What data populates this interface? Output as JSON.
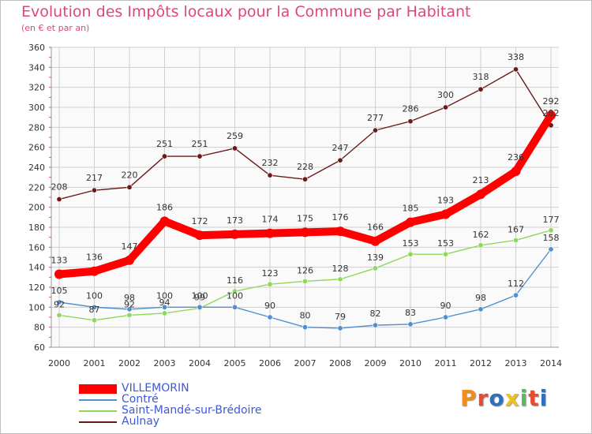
{
  "title": "Evolution des Impôts locaux pour la Commune par Habitant",
  "subtitle": "(en € et par an)",
  "logo": {
    "text": "Proxiti",
    "colors": [
      "#f28c1e",
      "#e84b33",
      "#2f6fc2",
      "#f2c01e",
      "#5cb85c",
      "#e84b33",
      "#2f6fc2"
    ]
  },
  "chart_data": {
    "type": "line",
    "x": [
      "2000",
      "2001",
      "2002",
      "2003",
      "2004",
      "2005",
      "2006",
      "2007",
      "2008",
      "2009",
      "2010",
      "2011",
      "2012",
      "2013",
      "2014"
    ],
    "ylim": [
      60,
      360
    ],
    "yticks": [
      60,
      80,
      100,
      120,
      140,
      160,
      180,
      200,
      220,
      240,
      260,
      280,
      300,
      320,
      340,
      360
    ],
    "grid": true,
    "legend_position": "bottom-left",
    "series": [
      {
        "name": "VILLEMORIN",
        "color": "#ff0000",
        "values": [
          133,
          136,
          147,
          186,
          172,
          173,
          174,
          175,
          176,
          166,
          185,
          193,
          213,
          236,
          292
        ]
      },
      {
        "name": "Contré",
        "color": "#4f8fd0",
        "values": [
          105,
          100,
          98,
          100,
          100,
          100,
          90,
          80,
          79,
          82,
          83,
          90,
          98,
          112,
          158
        ]
      },
      {
        "name": "Saint-Mandé-sur-Brédoire",
        "color": "#8ed85a",
        "values": [
          92,
          87,
          92,
          94,
          99,
          116,
          123,
          126,
          128,
          139,
          153,
          153,
          162,
          167,
          177
        ]
      },
      {
        "name": "Aulnay",
        "color": "#6b1a1a",
        "values": [
          208,
          217,
          220,
          251,
          251,
          259,
          232,
          228,
          247,
          277,
          286,
          300,
          318,
          338,
          282
        ]
      }
    ]
  }
}
